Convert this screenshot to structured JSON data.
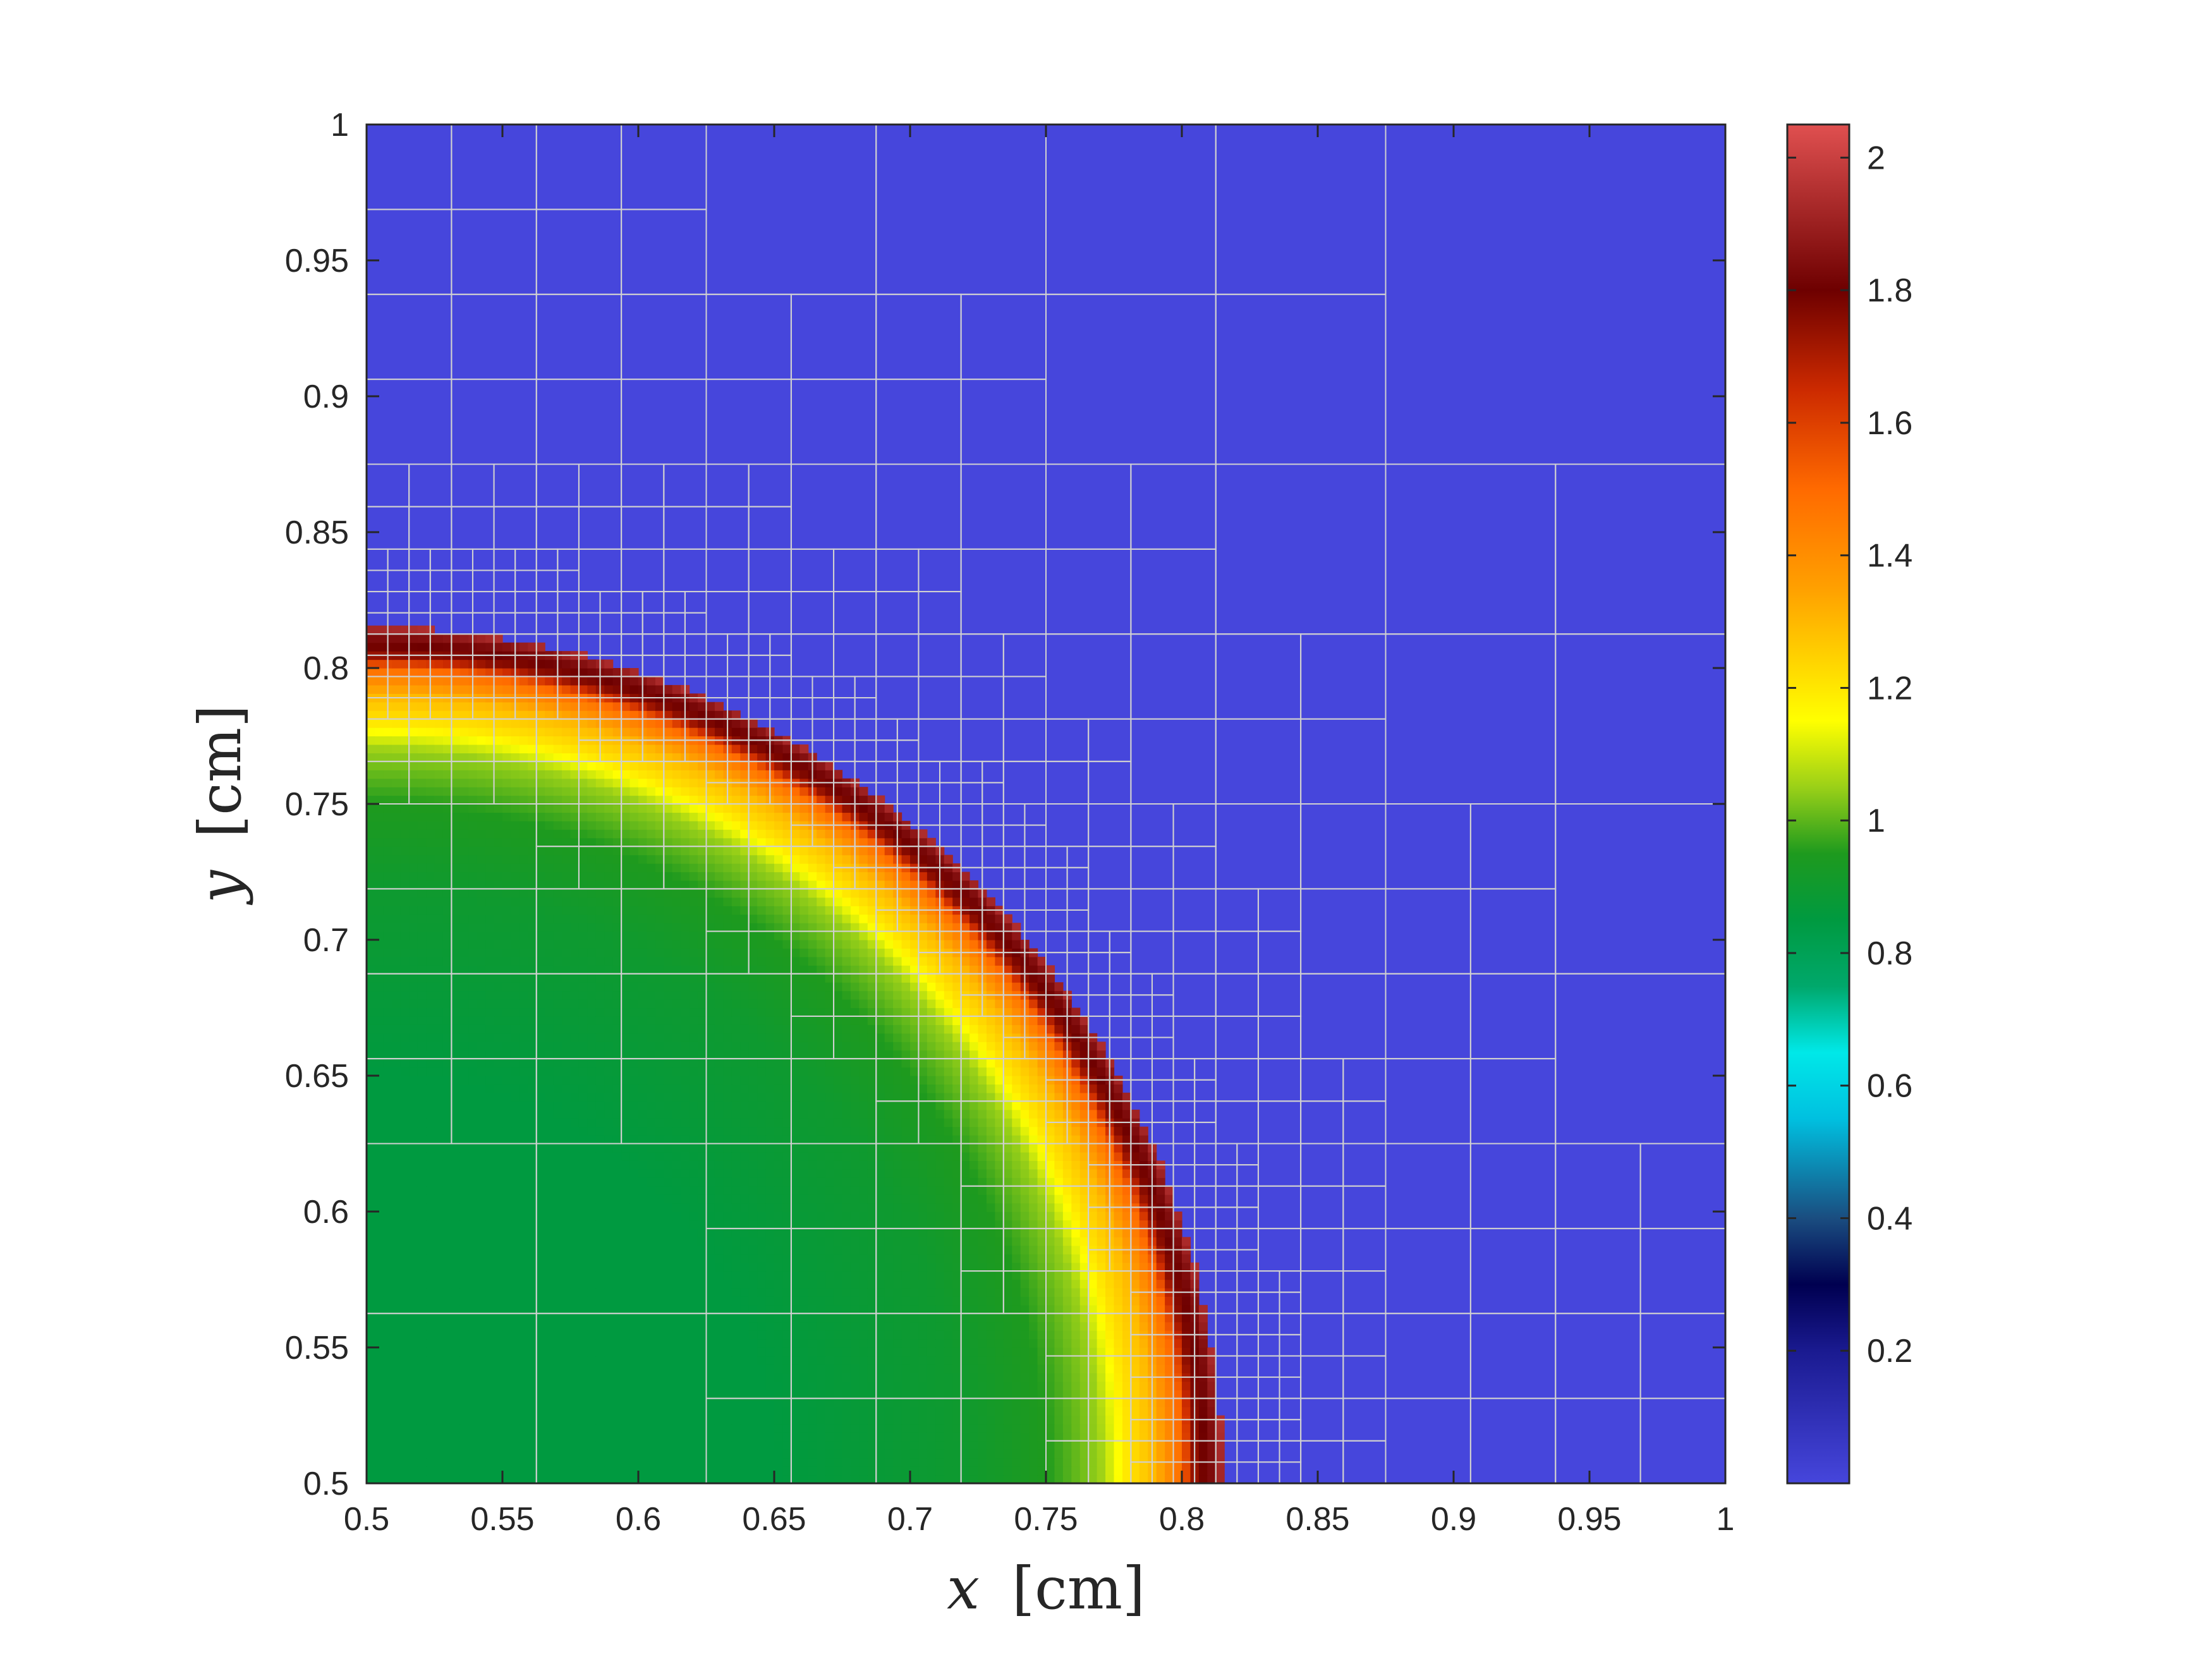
{
  "chart_data": {
    "type": "heatmap",
    "title": "",
    "xlabel": {
      "var": "x",
      "unit": "[cm]"
    },
    "ylabel": {
      "var": "y",
      "unit": "[cm]"
    },
    "xlim": [
      0.5,
      1
    ],
    "ylim": [
      0.5,
      1
    ],
    "x_ticks": [
      "0.5",
      "0.55",
      "0.6",
      "0.65",
      "0.7",
      "0.75",
      "0.8",
      "0.85",
      "0.9",
      "0.95",
      "1"
    ],
    "y_ticks": [
      "0.5",
      "0.55",
      "0.6",
      "0.65",
      "0.7",
      "0.75",
      "0.8",
      "0.85",
      "0.9",
      "0.95",
      "1"
    ],
    "grid": false,
    "field": {
      "description_type": "radial_front",
      "center": [
        0.5,
        0.5
      ],
      "front_radius": 0.315,
      "ambient_value": 0.03,
      "radial_profile": [
        {
          "r": 0.0,
          "value": 0.85
        },
        {
          "r": 0.15,
          "value": 0.85
        },
        {
          "r": 0.22,
          "value": 0.9
        },
        {
          "r": 0.25,
          "value": 0.95
        },
        {
          "r": 0.27,
          "value": 1.05
        },
        {
          "r": 0.28,
          "value": 1.2
        },
        {
          "r": 0.29,
          "value": 1.3
        },
        {
          "r": 0.3,
          "value": 1.5
        },
        {
          "r": 0.305,
          "value": 1.75
        },
        {
          "r": 0.312,
          "value": 1.85
        },
        {
          "r": 0.315,
          "value": 1.95
        }
      ]
    },
    "amr_mesh": {
      "line_color": "#d0d0d0",
      "coarse_spacing": 0.0625,
      "refined_levels": [
        0.03125,
        0.015625,
        0.0078125
      ]
    },
    "colorbar": {
      "min": 0,
      "max": 2.05,
      "ticks": [
        "0.2",
        "0.4",
        "0.6",
        "0.8",
        "1",
        "1.2",
        "1.4",
        "1.6",
        "1.8",
        "2"
      ],
      "tick_values": [
        0.2,
        0.4,
        0.6,
        0.8,
        1,
        1.2,
        1.4,
        1.6,
        1.8,
        2
      ],
      "colormap_stops": [
        {
          "v": 0.0,
          "color": "#4646dc"
        },
        {
          "v": 0.2,
          "color": "#1a1a90"
        },
        {
          "v": 0.3,
          "color": "#000050"
        },
        {
          "v": 0.4,
          "color": "#1a4d80"
        },
        {
          "v": 0.55,
          "color": "#00c0e0"
        },
        {
          "v": 0.65,
          "color": "#00e8e8"
        },
        {
          "v": 0.75,
          "color": "#00a86b"
        },
        {
          "v": 0.85,
          "color": "#009a40"
        },
        {
          "v": 0.95,
          "color": "#1e9a1e"
        },
        {
          "v": 1.05,
          "color": "#9ad018"
        },
        {
          "v": 1.15,
          "color": "#ffff00"
        },
        {
          "v": 1.35,
          "color": "#ffa000"
        },
        {
          "v": 1.5,
          "color": "#ff6a00"
        },
        {
          "v": 1.65,
          "color": "#cc2a00"
        },
        {
          "v": 1.8,
          "color": "#6e0000"
        },
        {
          "v": 2.05,
          "color": "#e05050"
        }
      ]
    },
    "colors": {
      "ambient": "#4646dc",
      "axes": "#262626",
      "background": "#ffffff"
    }
  }
}
